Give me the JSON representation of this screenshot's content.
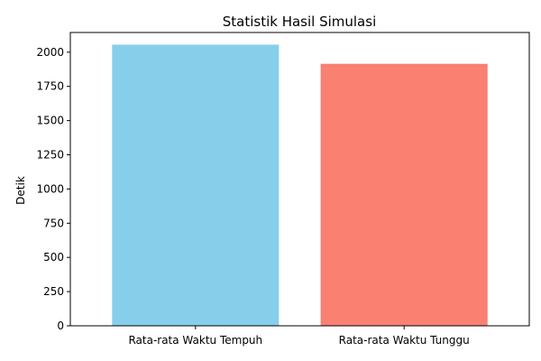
{
  "chart_data": {
    "type": "bar",
    "title": "Statistik Hasil Simulasi",
    "xlabel": "",
    "ylabel": "Detik",
    "categories": [
      "Rata-rata Waktu Tempuh",
      "Rata-rata Waktu Tunggu"
    ],
    "values": [
      2055,
      1915
    ],
    "colors": [
      "#87ceeb",
      "#fa8072"
    ],
    "ylim": [
      0,
      2144
    ],
    "yticks": [
      "0",
      "250",
      "500",
      "750",
      "1000",
      "1250",
      "1500",
      "1750",
      "2000"
    ],
    "grid": false,
    "legend": "none"
  }
}
